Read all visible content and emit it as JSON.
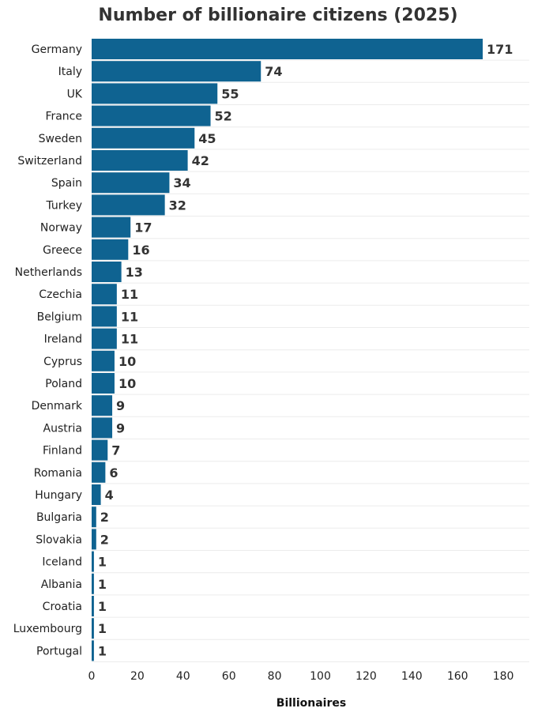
{
  "chart_data": {
    "type": "bar",
    "orientation": "horizontal",
    "title": "Number of billionaire citizens (2025)",
    "xlabel": "Billionaires",
    "ylabel": "",
    "categories": [
      "Germany",
      "Italy",
      "UK",
      "France",
      "Sweden",
      "Switzerland",
      "Spain",
      "Turkey",
      "Norway",
      "Greece",
      "Netherlands",
      "Czechia",
      "Belgium",
      "Ireland",
      "Cyprus",
      "Poland",
      "Denmark",
      "Austria",
      "Finland",
      "Romania",
      "Hungary",
      "Bulgaria",
      "Slovakia",
      "Iceland",
      "Albania",
      "Croatia",
      "Luxembourg",
      "Portugal"
    ],
    "values": [
      171,
      74,
      55,
      52,
      45,
      42,
      34,
      32,
      17,
      16,
      13,
      11,
      11,
      11,
      10,
      10,
      9,
      9,
      7,
      6,
      4,
      2,
      2,
      1,
      1,
      1,
      1,
      1
    ],
    "xlim": [
      0,
      190
    ],
    "xticks": [
      0,
      20,
      40,
      60,
      80,
      100,
      120,
      140,
      160,
      180
    ],
    "bar_color": "#0f6391",
    "grid": true,
    "legend": "none"
  }
}
